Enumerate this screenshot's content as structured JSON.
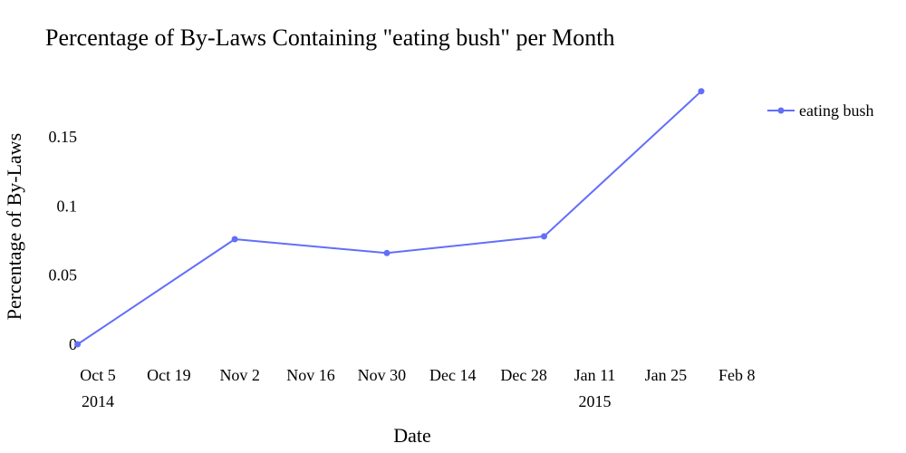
{
  "chart_data": {
    "type": "line",
    "title": "Percentage of By-Laws Containing \"eating bush\" per Month",
    "xlabel": "Date",
    "ylabel": "Percentage of By-Laws",
    "x_range": [
      "2014-09-30",
      "2015-02-11"
    ],
    "ylim": [
      0,
      0.19
    ],
    "x_ticks": [
      {
        "date": "2014-10-05",
        "label": "Oct 5",
        "sublabel": "2014"
      },
      {
        "date": "2014-10-19",
        "label": "Oct 19",
        "sublabel": ""
      },
      {
        "date": "2014-11-02",
        "label": "Nov 2",
        "sublabel": ""
      },
      {
        "date": "2014-11-16",
        "label": "Nov 16",
        "sublabel": ""
      },
      {
        "date": "2014-11-30",
        "label": "Nov 30",
        "sublabel": ""
      },
      {
        "date": "2014-12-14",
        "label": "Dec 14",
        "sublabel": ""
      },
      {
        "date": "2014-12-28",
        "label": "Dec 28",
        "sublabel": ""
      },
      {
        "date": "2015-01-11",
        "label": "Jan 11",
        "sublabel": "2015"
      },
      {
        "date": "2015-01-25",
        "label": "Jan 25",
        "sublabel": ""
      },
      {
        "date": "2015-02-08",
        "label": "Feb 8",
        "sublabel": ""
      }
    ],
    "y_ticks": [
      {
        "value": 0,
        "label": "0"
      },
      {
        "value": 0.05,
        "label": "0.05"
      },
      {
        "value": 0.1,
        "label": "0.1"
      },
      {
        "value": 0.15,
        "label": "0.15"
      }
    ],
    "grid": false,
    "legend_position": "top-right",
    "series": [
      {
        "name": "eating bush",
        "color": "#636efa",
        "points": [
          {
            "x": "2014-10-01",
            "y": 0
          },
          {
            "x": "2014-11-01",
            "y": 0.076
          },
          {
            "x": "2014-12-01",
            "y": 0.066
          },
          {
            "x": "2015-01-01",
            "y": 0.078
          },
          {
            "x": "2015-02-01",
            "y": 0.183
          }
        ]
      }
    ]
  }
}
